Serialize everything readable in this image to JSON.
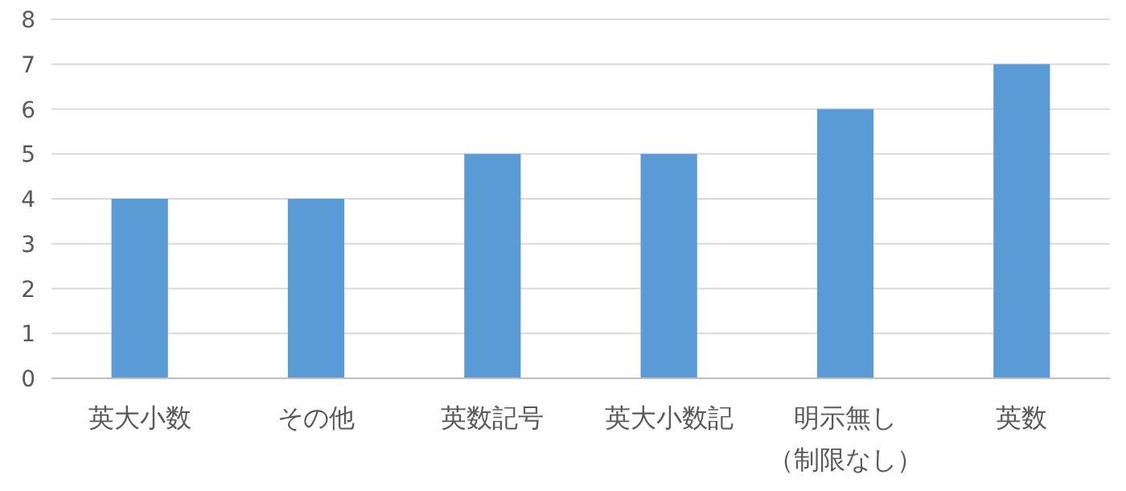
{
  "chart_data": {
    "type": "bar",
    "categories": [
      "英大小数",
      "その他",
      "英数記号",
      "英大小数記",
      "明示無し（制限なし）",
      "英数"
    ],
    "values": [
      4,
      4,
      5,
      5,
      6,
      7
    ],
    "color": "#5b9bd5",
    "ylim": [
      0,
      8
    ],
    "yticks": [
      0,
      1,
      2,
      3,
      4,
      5,
      6,
      7,
      8
    ],
    "grid": "y"
  }
}
